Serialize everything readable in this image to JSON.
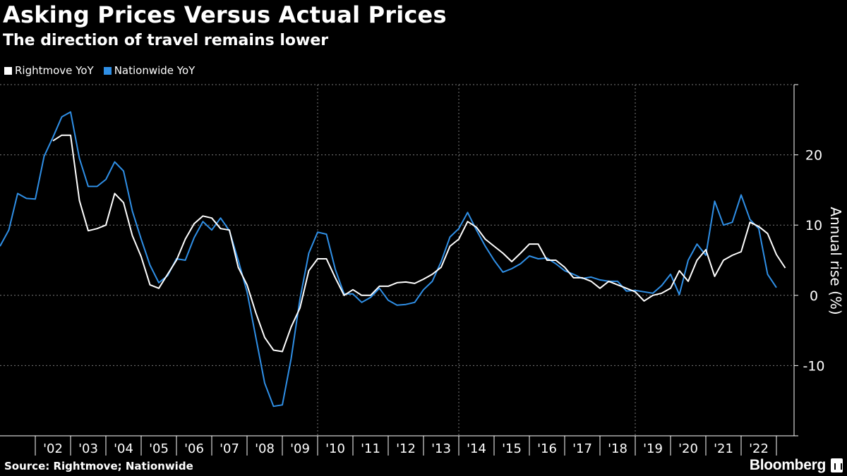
{
  "chart_data": {
    "type": "line",
    "title": "Asking Prices Versus Actual Prices",
    "subtitle": "The direction of travel remains lower",
    "xlabel": "",
    "ylabel": "Annual rise (%)",
    "ylim": [
      -20,
      30
    ],
    "xlim": [
      2001.0,
      2023.5
    ],
    "yticks": [
      20,
      10,
      0,
      -10
    ],
    "ytick_labels": [
      "20",
      "10",
      "0",
      "-10"
    ],
    "grid": true,
    "legend_position": "top-left",
    "categories": [
      "'02",
      "'03",
      "'04",
      "'05",
      "'06",
      "'07",
      "'08",
      "'09",
      "'10",
      "'11",
      "'12",
      "'13",
      "'14",
      "'15",
      "'16",
      "'17",
      "'18",
      "'19",
      "'20",
      "'21",
      "'22"
    ],
    "series": [
      {
        "name": "Rightmove YoY",
        "color": "#ffffff",
        "points": [
          [
            2002.5,
            22.0
          ],
          [
            2002.75,
            22.8
          ],
          [
            2003.0,
            22.8
          ],
          [
            2003.25,
            13.5
          ],
          [
            2003.5,
            9.2
          ],
          [
            2003.75,
            9.5
          ],
          [
            2004.0,
            10.0
          ],
          [
            2004.25,
            14.5
          ],
          [
            2004.5,
            13.2
          ],
          [
            2004.75,
            8.5
          ],
          [
            2005.0,
            5.5
          ],
          [
            2005.25,
            1.5
          ],
          [
            2005.5,
            1.0
          ],
          [
            2005.75,
            3.0
          ],
          [
            2006.0,
            5.0
          ],
          [
            2006.25,
            8.0
          ],
          [
            2006.5,
            10.2
          ],
          [
            2006.75,
            11.3
          ],
          [
            2007.0,
            11.0
          ],
          [
            2007.25,
            9.5
          ],
          [
            2007.5,
            9.3
          ],
          [
            2007.75,
            4.0
          ],
          [
            2008.0,
            1.5
          ],
          [
            2008.25,
            -2.5
          ],
          [
            2008.5,
            -6.0
          ],
          [
            2008.75,
            -7.8
          ],
          [
            2009.0,
            -8.0
          ],
          [
            2009.25,
            -4.5
          ],
          [
            2009.5,
            -1.8
          ],
          [
            2009.75,
            3.5
          ],
          [
            2010.0,
            5.2
          ],
          [
            2010.25,
            5.2
          ],
          [
            2010.5,
            2.5
          ],
          [
            2010.75,
            0.0
          ],
          [
            2011.0,
            0.8
          ],
          [
            2011.25,
            0.0
          ],
          [
            2011.5,
            0.0
          ],
          [
            2011.75,
            1.3
          ],
          [
            2012.0,
            1.3
          ],
          [
            2012.25,
            1.8
          ],
          [
            2012.5,
            1.9
          ],
          [
            2012.75,
            1.7
          ],
          [
            2013.0,
            2.3
          ],
          [
            2013.25,
            3.0
          ],
          [
            2013.5,
            4.0
          ],
          [
            2013.75,
            7.0
          ],
          [
            2014.0,
            8.0
          ],
          [
            2014.25,
            10.5
          ],
          [
            2014.5,
            9.7
          ],
          [
            2014.75,
            8.0
          ],
          [
            2015.0,
            7.0
          ],
          [
            2015.25,
            6.0
          ],
          [
            2015.5,
            4.8
          ],
          [
            2015.75,
            6.0
          ],
          [
            2016.0,
            7.3
          ],
          [
            2016.25,
            7.3
          ],
          [
            2016.5,
            5.0
          ],
          [
            2016.75,
            5.0
          ],
          [
            2017.0,
            4.0
          ],
          [
            2017.25,
            2.5
          ],
          [
            2017.5,
            2.5
          ],
          [
            2017.75,
            2.0
          ],
          [
            2018.0,
            1.0
          ],
          [
            2018.25,
            2.0
          ],
          [
            2018.5,
            1.5
          ],
          [
            2018.75,
            1.0
          ],
          [
            2019.0,
            0.5
          ],
          [
            2019.25,
            -0.8
          ],
          [
            2019.5,
            0.0
          ],
          [
            2019.75,
            0.3
          ],
          [
            2020.0,
            1.0
          ],
          [
            2020.25,
            3.5
          ],
          [
            2020.5,
            2.0
          ],
          [
            2020.75,
            5.0
          ],
          [
            2021.0,
            6.5
          ],
          [
            2021.25,
            2.7
          ],
          [
            2021.5,
            5.0
          ],
          [
            2021.75,
            5.7
          ],
          [
            2022.0,
            6.2
          ],
          [
            2022.25,
            10.4
          ],
          [
            2022.5,
            9.8
          ],
          [
            2022.75,
            8.8
          ],
          [
            2023.0,
            5.8
          ],
          [
            2023.25,
            3.9
          ]
        ]
      },
      {
        "name": "Nationwide YoY",
        "color": "#2f8fe6",
        "points": [
          [
            2001.0,
            7.0
          ],
          [
            2001.25,
            9.3
          ],
          [
            2001.5,
            14.5
          ],
          [
            2001.75,
            13.8
          ],
          [
            2002.0,
            13.7
          ],
          [
            2002.25,
            19.8
          ],
          [
            2002.5,
            22.5
          ],
          [
            2002.75,
            25.4
          ],
          [
            2003.0,
            26.1
          ],
          [
            2003.25,
            19.5
          ],
          [
            2003.5,
            15.5
          ],
          [
            2003.75,
            15.5
          ],
          [
            2004.0,
            16.5
          ],
          [
            2004.25,
            19.0
          ],
          [
            2004.5,
            17.7
          ],
          [
            2004.75,
            12.0
          ],
          [
            2005.0,
            8.0
          ],
          [
            2005.25,
            4.3
          ],
          [
            2005.5,
            1.8
          ],
          [
            2005.75,
            2.8
          ],
          [
            2006.0,
            5.2
          ],
          [
            2006.25,
            5.0
          ],
          [
            2006.5,
            8.2
          ],
          [
            2006.75,
            10.5
          ],
          [
            2007.0,
            9.3
          ],
          [
            2007.25,
            11.0
          ],
          [
            2007.5,
            9.2
          ],
          [
            2007.75,
            5.0
          ],
          [
            2008.0,
            0.5
          ],
          [
            2008.25,
            -6.0
          ],
          [
            2008.5,
            -12.5
          ],
          [
            2008.75,
            -15.8
          ],
          [
            2009.0,
            -15.6
          ],
          [
            2009.25,
            -9.0
          ],
          [
            2009.5,
            -0.5
          ],
          [
            2009.75,
            6.0
          ],
          [
            2010.0,
            9.0
          ],
          [
            2010.25,
            8.7
          ],
          [
            2010.5,
            3.7
          ],
          [
            2010.75,
            0.2
          ],
          [
            2011.0,
            0.2
          ],
          [
            2011.25,
            -1.0
          ],
          [
            2011.5,
            -0.3
          ],
          [
            2011.75,
            1.0
          ],
          [
            2012.0,
            -0.7
          ],
          [
            2012.25,
            -1.4
          ],
          [
            2012.5,
            -1.3
          ],
          [
            2012.75,
            -1.0
          ],
          [
            2013.0,
            0.8
          ],
          [
            2013.25,
            2.0
          ],
          [
            2013.5,
            4.8
          ],
          [
            2013.75,
            8.3
          ],
          [
            2014.0,
            9.5
          ],
          [
            2014.25,
            11.8
          ],
          [
            2014.5,
            9.3
          ],
          [
            2014.75,
            7.0
          ],
          [
            2015.0,
            5.0
          ],
          [
            2015.25,
            3.3
          ],
          [
            2015.5,
            3.8
          ],
          [
            2015.75,
            4.5
          ],
          [
            2016.0,
            5.6
          ],
          [
            2016.25,
            5.2
          ],
          [
            2016.5,
            5.3
          ],
          [
            2016.75,
            4.5
          ],
          [
            2017.0,
            3.5
          ],
          [
            2017.25,
            3.0
          ],
          [
            2017.5,
            2.4
          ],
          [
            2017.75,
            2.6
          ],
          [
            2018.0,
            2.2
          ],
          [
            2018.25,
            2.0
          ],
          [
            2018.5,
            2.0
          ],
          [
            2018.75,
            0.6
          ],
          [
            2019.0,
            0.7
          ],
          [
            2019.25,
            0.5
          ],
          [
            2019.5,
            0.3
          ],
          [
            2019.75,
            1.4
          ],
          [
            2020.0,
            3.0
          ],
          [
            2020.25,
            0.1
          ],
          [
            2020.5,
            5.0
          ],
          [
            2020.75,
            7.3
          ],
          [
            2021.0,
            5.7
          ],
          [
            2021.25,
            13.4
          ],
          [
            2021.5,
            10.0
          ],
          [
            2021.75,
            10.4
          ],
          [
            2022.0,
            14.3
          ],
          [
            2022.25,
            10.8
          ],
          [
            2022.5,
            9.5
          ],
          [
            2022.75,
            3.0
          ],
          [
            2023.0,
            1.1
          ]
        ]
      }
    ]
  },
  "footer": {
    "source": "Source: Rightmove; Nationwide",
    "brand": "Bloomberg"
  }
}
